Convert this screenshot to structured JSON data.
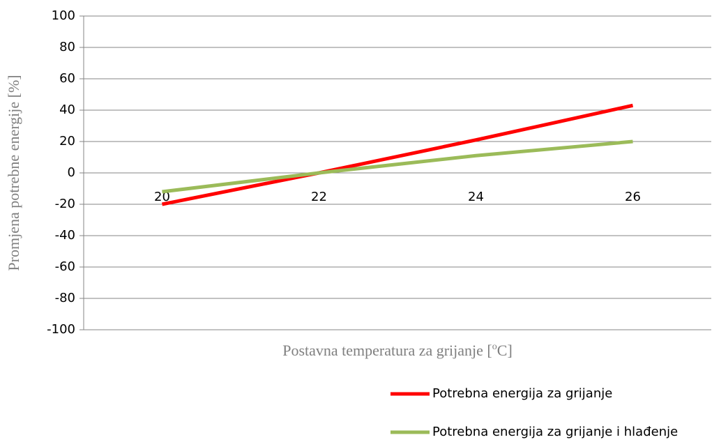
{
  "chart_data": {
    "type": "line",
    "x_label": [
      "Postavna temperatura za grijanje [",
      "o",
      "C]"
    ],
    "y_label": "Promjena potrebne energije [%]",
    "x": [
      20,
      22,
      24,
      26
    ],
    "series": [
      {
        "name": "Potrebna energija za grijanje",
        "color": "#ff0000",
        "values": [
          -20,
          0,
          21,
          43
        ]
      },
      {
        "name": "Potrebna energija za grijanje i hlađenje",
        "color": "#9bbb59",
        "values": [
          -12,
          0,
          11,
          20
        ]
      }
    ],
    "ylim": [
      -100,
      100
    ],
    "yticks": [
      -100,
      -80,
      -60,
      -40,
      -20,
      0,
      20,
      40,
      60,
      80,
      100
    ],
    "grid": true,
    "legend": "bottom"
  }
}
